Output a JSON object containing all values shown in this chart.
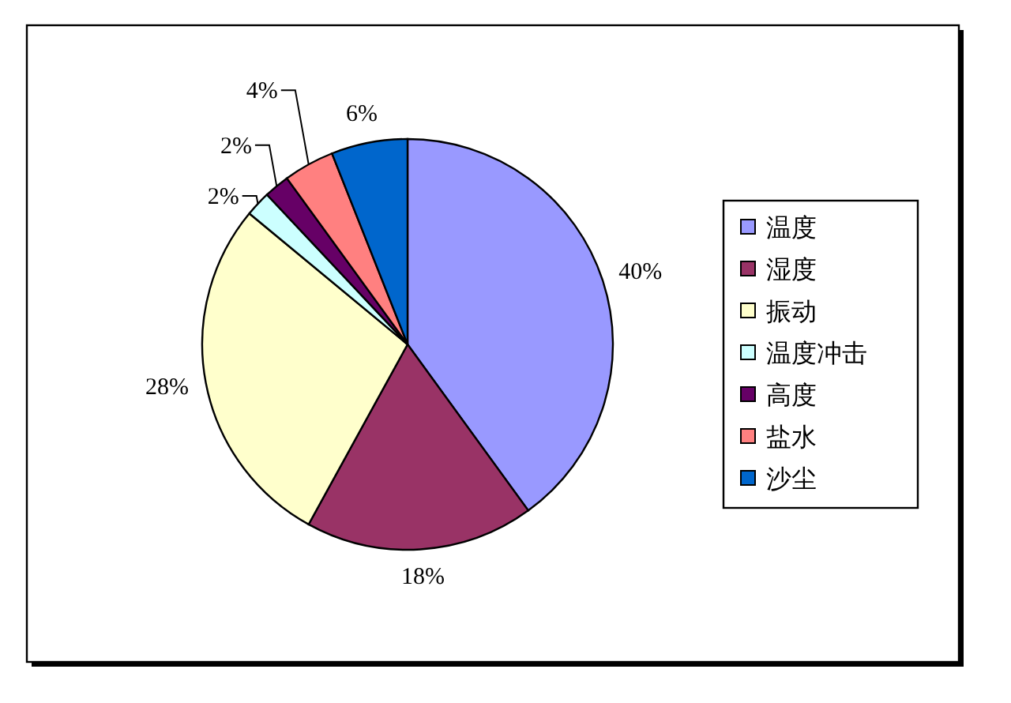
{
  "chart_data": {
    "type": "pie",
    "categories": [
      "温度",
      "湿度",
      "振动",
      "温度冲击",
      "高度",
      "盐水",
      "沙尘"
    ],
    "values": [
      40,
      18,
      28,
      2,
      2,
      4,
      6
    ],
    "colors": [
      "#9999ff",
      "#993366",
      "#ffffcc",
      "#ccffff",
      "#660066",
      "#ff8080",
      "#0066cc"
    ],
    "value_labels": [
      "40%",
      "18%",
      "28%",
      "2%",
      "2%",
      "4%",
      "6%"
    ],
    "legend": "right"
  }
}
